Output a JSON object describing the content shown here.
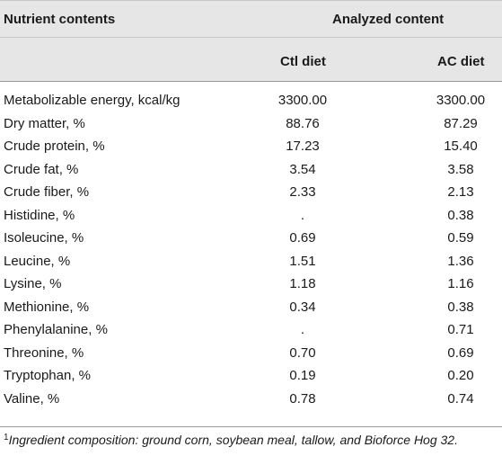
{
  "table": {
    "header": {
      "nutrient_col": "Nutrient contents",
      "group_label": "Analyzed content",
      "col1": "Ctl diet",
      "col2": "AC diet"
    },
    "rows": [
      {
        "name": "Metabolizable energy, kcal/kg",
        "ctl": "3300.00",
        "ac": "3300.00"
      },
      {
        "name": "Dry matter, %",
        "ctl": "88.76",
        "ac": "87.29"
      },
      {
        "name": "Crude protein, %",
        "ctl": "17.23",
        "ac": "15.40"
      },
      {
        "name": "Crude fat, %",
        "ctl": "3.54",
        "ac": "3.58"
      },
      {
        "name": "Crude fiber, %",
        "ctl": "2.33",
        "ac": "2.13"
      },
      {
        "name": "Histidine, %",
        "ctl": ".",
        "ac": "0.38"
      },
      {
        "name": "Isoleucine, %",
        "ctl": "0.69",
        "ac": "0.59"
      },
      {
        "name": "Leucine, %",
        "ctl": "1.51",
        "ac": "1.36"
      },
      {
        "name": "Lysine, %",
        "ctl": "1.18",
        "ac": "1.16"
      },
      {
        "name": "Methionine, %",
        "ctl": "0.34",
        "ac": "0.38"
      },
      {
        "name": "Phenylalanine, %",
        "ctl": ".",
        "ac": "0.71"
      },
      {
        "name": "Threonine, %",
        "ctl": "0.70",
        "ac": "0.69"
      },
      {
        "name": "Tryptophan, %",
        "ctl": "0.19",
        "ac": "0.20"
      },
      {
        "name": "Valine, %",
        "ctl": "0.78",
        "ac": "0.74"
      }
    ],
    "footnote": {
      "marker": "1",
      "text": "Ingredient composition: ground corn, soybean meal, tallow, and Bioforce Hog 32."
    }
  }
}
